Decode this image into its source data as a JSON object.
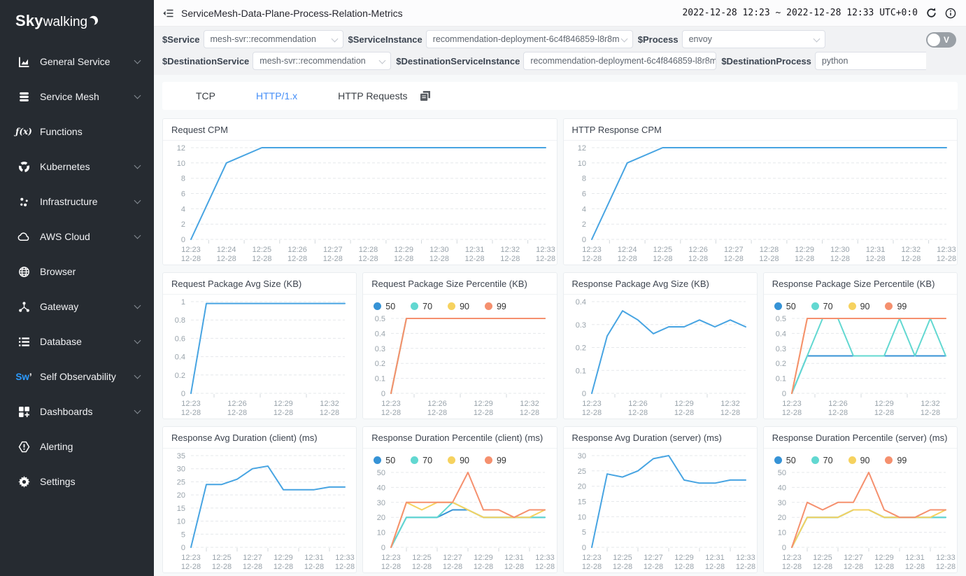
{
  "sidebar": {
    "logo_bold": "Sky",
    "logo_rest": "walking",
    "items": [
      {
        "key": "general-service",
        "label": "General Service",
        "icon": "chart-board-icon",
        "expandable": true
      },
      {
        "key": "service-mesh",
        "label": "Service Mesh",
        "icon": "layers-icon",
        "expandable": true
      },
      {
        "key": "functions",
        "label": "Functions",
        "icon": "function-icon",
        "expandable": false
      },
      {
        "key": "kubernetes",
        "label": "Kubernetes",
        "icon": "kubernetes-icon",
        "expandable": true
      },
      {
        "key": "infrastructure",
        "label": "Infrastructure",
        "icon": "dots-icon",
        "expandable": true
      },
      {
        "key": "aws-cloud",
        "label": "AWS Cloud",
        "icon": "cloud-icon",
        "expandable": true
      },
      {
        "key": "browser",
        "label": "Browser",
        "icon": "globe-icon",
        "expandable": false
      },
      {
        "key": "gateway",
        "label": "Gateway",
        "icon": "gateway-icon",
        "expandable": true
      },
      {
        "key": "database",
        "label": "Database",
        "icon": "list-icon",
        "expandable": true
      },
      {
        "key": "self-observability",
        "label": "Self Observability",
        "icon": "sw-icon",
        "expandable": true
      },
      {
        "key": "dashboards",
        "label": "Dashboards",
        "icon": "dashboard-grid-icon",
        "expandable": true
      },
      {
        "key": "alerting",
        "label": "Alerting",
        "icon": "alert-icon",
        "expandable": false
      },
      {
        "key": "settings",
        "label": "Settings",
        "icon": "gear-icon",
        "expandable": false
      }
    ]
  },
  "header": {
    "title": "ServiceMesh-Data-Plane-Process-Relation-Metrics",
    "time_range": "2022-12-28 12:23 ~ 2022-12-28 12:33 UTC+0:0"
  },
  "filters": {
    "toggle_label": "V",
    "row1": [
      {
        "key": "service",
        "label": "$Service",
        "value": "mesh-svr::recommendation"
      },
      {
        "key": "service-instance",
        "label": "$ServiceInstance",
        "value": "recommendation-deployment-6c4f846859-l8r8m"
      },
      {
        "key": "process",
        "label": "$Process",
        "value": "envoy"
      }
    ],
    "row2": [
      {
        "key": "destination-service",
        "label": "$DestinationService",
        "value": "mesh-svr::recommendation"
      },
      {
        "key": "destination-service-instance",
        "label": "$DestinationServiceInstance",
        "value": "recommendation-deployment-6c4f846859-l8r8m"
      },
      {
        "key": "destination-process",
        "label": "$DestinationProcess",
        "value": "python"
      }
    ]
  },
  "tabs": [
    {
      "label": "TCP",
      "active": false
    },
    {
      "label": "HTTP/1.x",
      "active": true
    },
    {
      "label": "HTTP Requests",
      "active": false
    }
  ],
  "colors": {
    "single_line": "#47a4e2",
    "p50": "#3693d6",
    "p70": "#62d8d1",
    "p90": "#f6d25f",
    "p99": "#f5906e",
    "active_tab": "#448ef7",
    "sw_blue": "#2c9bff"
  },
  "chart_data": [
    {
      "type": "line",
      "title": "Request CPM",
      "span": 2,
      "legend": false,
      "x": [
        "12:23",
        "12:24",
        "12:25",
        "12:26",
        "12:27",
        "12:28",
        "12:29",
        "12:30",
        "12:31",
        "12:32",
        "12:33"
      ],
      "x_sublabel": "12-28",
      "label_idx": [
        0,
        1,
        2,
        3,
        4,
        5,
        6,
        7,
        8,
        9,
        10
      ],
      "yticks": [
        0,
        2,
        4,
        6,
        8,
        10,
        12
      ],
      "ylim": [
        0,
        12
      ],
      "series": [
        {
          "name": "cpm",
          "color": "#47a4e2",
          "values": [
            0,
            10,
            12,
            12,
            12,
            12,
            12,
            12,
            12,
            12,
            12
          ]
        }
      ]
    },
    {
      "type": "line",
      "title": "HTTP Response CPM",
      "span": 2,
      "legend": false,
      "x": [
        "12:23",
        "12:24",
        "12:25",
        "12:26",
        "12:27",
        "12:28",
        "12:29",
        "12:30",
        "12:31",
        "12:32",
        "12:33"
      ],
      "x_sublabel": "12-28",
      "label_idx": [
        0,
        1,
        2,
        3,
        4,
        5,
        6,
        7,
        8,
        9,
        10
      ],
      "yticks": [
        0,
        2,
        4,
        6,
        8,
        10,
        12
      ],
      "ylim": [
        0,
        12
      ],
      "series": [
        {
          "name": "cpm",
          "color": "#47a4e2",
          "values": [
            0,
            10,
            12,
            12,
            12,
            12,
            12,
            12,
            12,
            12,
            12
          ]
        }
      ]
    },
    {
      "type": "line",
      "title": "Request Package Avg Size (KB)",
      "span": 1,
      "legend": false,
      "x": [
        "12:23",
        "12:24",
        "12:25",
        "12:26",
        "12:27",
        "12:28",
        "12:29",
        "12:30",
        "12:31",
        "12:32",
        "12:33"
      ],
      "x_sublabel": "12-28",
      "label_idx": [
        0,
        3,
        6,
        9
      ],
      "yticks": [
        0,
        0.2,
        0.4,
        0.6,
        0.8,
        1
      ],
      "ylim": [
        0,
        1
      ],
      "series": [
        {
          "name": "avg",
          "color": "#47a4e2",
          "values": [
            0,
            0.98,
            0.98,
            0.98,
            0.98,
            0.98,
            0.98,
            0.98,
            0.98,
            0.98,
            0.98
          ]
        }
      ]
    },
    {
      "type": "line",
      "title": "Request Package Size Percentile (KB)",
      "span": 1,
      "legend": true,
      "x": [
        "12:23",
        "12:24",
        "12:25",
        "12:26",
        "12:27",
        "12:28",
        "12:29",
        "12:30",
        "12:31",
        "12:32",
        "12:33"
      ],
      "x_sublabel": "12-28",
      "label_idx": [
        0,
        3,
        6,
        9
      ],
      "yticks": [
        0,
        0.1,
        0.2,
        0.3,
        0.4,
        0.5
      ],
      "ylim": [
        0,
        0.5
      ],
      "series": [
        {
          "name": "50",
          "color": "#3693d6",
          "values": [
            0,
            0.5,
            0.5,
            0.5,
            0.5,
            0.5,
            0.5,
            0.5,
            0.5,
            0.5,
            0.5
          ]
        },
        {
          "name": "70",
          "color": "#62d8d1",
          "values": [
            0,
            0.5,
            0.5,
            0.5,
            0.5,
            0.5,
            0.5,
            0.5,
            0.5,
            0.5,
            0.5
          ]
        },
        {
          "name": "90",
          "color": "#f6d25f",
          "values": [
            0,
            0.5,
            0.5,
            0.5,
            0.5,
            0.5,
            0.5,
            0.5,
            0.5,
            0.5,
            0.5
          ]
        },
        {
          "name": "99",
          "color": "#f5906e",
          "values": [
            0,
            0.5,
            0.5,
            0.5,
            0.5,
            0.5,
            0.5,
            0.5,
            0.5,
            0.5,
            0.5
          ]
        }
      ]
    },
    {
      "type": "line",
      "title": "Response Package Avg Size (KB)",
      "span": 1,
      "legend": false,
      "x": [
        "12:23",
        "12:24",
        "12:25",
        "12:26",
        "12:27",
        "12:28",
        "12:29",
        "12:30",
        "12:31",
        "12:32",
        "12:33"
      ],
      "x_sublabel": "12-28",
      "label_idx": [
        0,
        3,
        6,
        9
      ],
      "yticks": [
        0,
        0.1,
        0.2,
        0.3,
        0.4
      ],
      "ylim": [
        0,
        0.4
      ],
      "series": [
        {
          "name": "avg",
          "color": "#47a4e2",
          "values": [
            0,
            0.25,
            0.36,
            0.32,
            0.26,
            0.29,
            0.29,
            0.32,
            0.29,
            0.32,
            0.29
          ]
        }
      ]
    },
    {
      "type": "line",
      "title": "Response Package Size Percentile (KB)",
      "span": 1,
      "legend": true,
      "x": [
        "12:23",
        "12:24",
        "12:25",
        "12:26",
        "12:27",
        "12:28",
        "12:29",
        "12:30",
        "12:31",
        "12:32",
        "12:33"
      ],
      "x_sublabel": "12-28",
      "label_idx": [
        0,
        3,
        6,
        9
      ],
      "yticks": [
        0,
        0.1,
        0.2,
        0.3,
        0.4,
        0.5
      ],
      "ylim": [
        0,
        0.5
      ],
      "series": [
        {
          "name": "50",
          "color": "#3693d6",
          "values": [
            0,
            0.25,
            0.25,
            0.25,
            0.25,
            0.25,
            0.25,
            0.25,
            0.25,
            0.25,
            0.25
          ]
        },
        {
          "name": "70",
          "color": "#62d8d1",
          "values": [
            0,
            0.25,
            0.5,
            0.5,
            0.25,
            0.25,
            0.25,
            0.5,
            0.25,
            0.5,
            0.25
          ]
        },
        {
          "name": "90",
          "color": "#f6d25f",
          "values": [
            0,
            0.5,
            0.5,
            0.5,
            0.5,
            0.5,
            0.5,
            0.5,
            0.5,
            0.5,
            0.5
          ]
        },
        {
          "name": "99",
          "color": "#f5906e",
          "values": [
            0,
            0.5,
            0.5,
            0.5,
            0.5,
            0.5,
            0.5,
            0.5,
            0.5,
            0.5,
            0.5
          ]
        }
      ]
    },
    {
      "type": "line",
      "title": "Response Avg Duration (client) (ms)",
      "span": 1,
      "legend": false,
      "x": [
        "12:23",
        "12:24",
        "12:25",
        "12:26",
        "12:27",
        "12:28",
        "12:29",
        "12:30",
        "12:31",
        "12:32",
        "12:33"
      ],
      "x_sublabel": "12-28",
      "label_idx": [
        0,
        2,
        4,
        6,
        8,
        10
      ],
      "yticks": [
        0,
        5,
        10,
        15,
        20,
        25,
        30,
        35
      ],
      "ylim": [
        0,
        35
      ],
      "series": [
        {
          "name": "avg",
          "color": "#47a4e2",
          "values": [
            0,
            24,
            24,
            26,
            30,
            31,
            22,
            22,
            22,
            23,
            23
          ]
        }
      ]
    },
    {
      "type": "line",
      "title": "Response Duration Percentile (client) (ms)",
      "span": 1,
      "legend": true,
      "x": [
        "12:23",
        "12:24",
        "12:25",
        "12:26",
        "12:27",
        "12:28",
        "12:29",
        "12:30",
        "12:31",
        "12:32",
        "12:33"
      ],
      "x_sublabel": "12-28",
      "label_idx": [
        0,
        2,
        4,
        6,
        8,
        10
      ],
      "yticks": [
        0,
        10,
        20,
        30,
        40,
        50
      ],
      "ylim": [
        0,
        50
      ],
      "series": [
        {
          "name": "50",
          "color": "#3693d6",
          "values": [
            0,
            20,
            20,
            20,
            25,
            25,
            20,
            20,
            20,
            20,
            20
          ]
        },
        {
          "name": "70",
          "color": "#62d8d1",
          "values": [
            0,
            20,
            20,
            20,
            30,
            25,
            20,
            20,
            20,
            20,
            20
          ]
        },
        {
          "name": "90",
          "color": "#f6d25f",
          "values": [
            0,
            30,
            25,
            30,
            30,
            25,
            20,
            20,
            20,
            20,
            25
          ]
        },
        {
          "name": "99",
          "color": "#f5906e",
          "values": [
            0,
            30,
            30,
            30,
            30,
            50,
            25,
            25,
            20,
            25,
            25
          ]
        }
      ]
    },
    {
      "type": "line",
      "title": "Response Avg Duration (server) (ms)",
      "span": 1,
      "legend": false,
      "x": [
        "12:23",
        "12:24",
        "12:25",
        "12:26",
        "12:27",
        "12:28",
        "12:29",
        "12:30",
        "12:31",
        "12:32",
        "12:33"
      ],
      "x_sublabel": "12-28",
      "label_idx": [
        0,
        2,
        4,
        6,
        8,
        10
      ],
      "yticks": [
        0,
        5,
        10,
        15,
        20,
        25,
        30
      ],
      "ylim": [
        0,
        30
      ],
      "series": [
        {
          "name": "avg",
          "color": "#47a4e2",
          "values": [
            0,
            24,
            23,
            25,
            29,
            30,
            22,
            21,
            21,
            22,
            22
          ]
        }
      ]
    },
    {
      "type": "line",
      "title": "Response Duration Percentile (server) (ms)",
      "span": 1,
      "legend": true,
      "x": [
        "12:23",
        "12:24",
        "12:25",
        "12:26",
        "12:27",
        "12:28",
        "12:29",
        "12:30",
        "12:31",
        "12:32",
        "12:33"
      ],
      "x_sublabel": "12-28",
      "label_idx": [
        0,
        2,
        4,
        6,
        8,
        10
      ],
      "yticks": [
        0,
        10,
        20,
        30,
        40,
        50
      ],
      "ylim": [
        0,
        50
      ],
      "series": [
        {
          "name": "50",
          "color": "#3693d6",
          "values": [
            0,
            20,
            20,
            20,
            25,
            25,
            20,
            20,
            20,
            20,
            20
          ]
        },
        {
          "name": "70",
          "color": "#62d8d1",
          "values": [
            0,
            20,
            20,
            20,
            25,
            25,
            20,
            20,
            20,
            20,
            20
          ]
        },
        {
          "name": "90",
          "color": "#f6d25f",
          "values": [
            0,
            20,
            20,
            20,
            25,
            25,
            20,
            20,
            20,
            20,
            25
          ]
        },
        {
          "name": "99",
          "color": "#f5906e",
          "values": [
            0,
            30,
            25,
            30,
            30,
            50,
            25,
            20,
            20,
            25,
            25
          ]
        }
      ]
    }
  ]
}
